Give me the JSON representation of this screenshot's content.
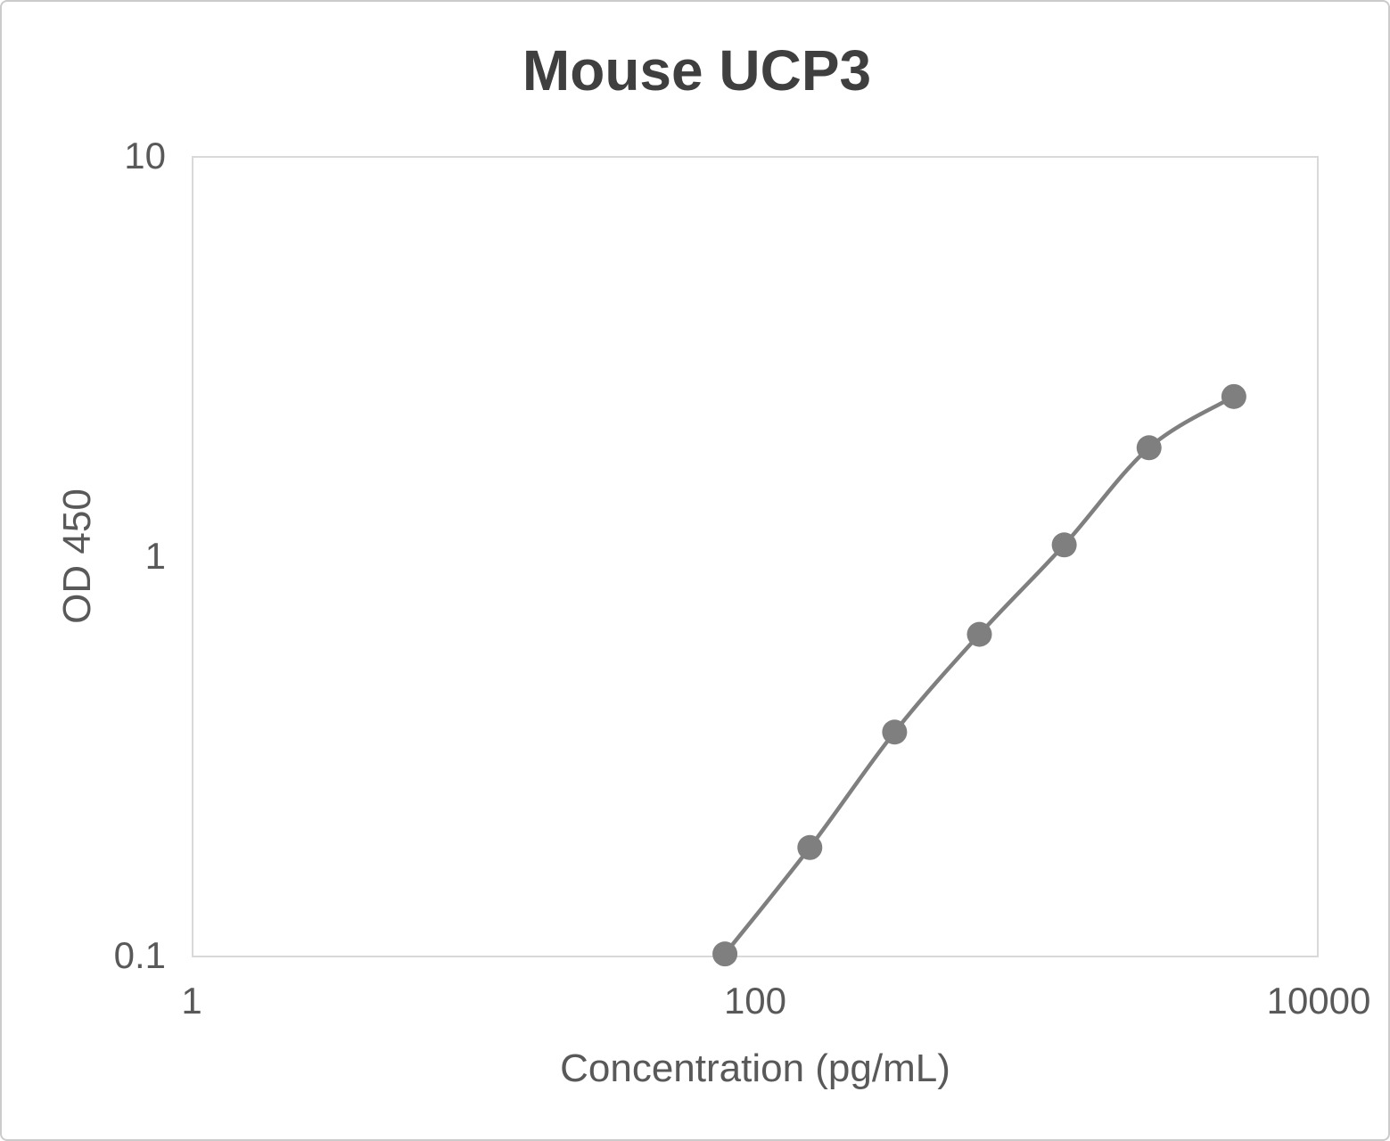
{
  "chart_data": {
    "type": "line",
    "title": "Mouse UCP3",
    "xlabel": "Concentration (pg/mL)",
    "ylabel": "OD 450",
    "x_scale": "log",
    "y_scale": "log",
    "xlim": [
      1,
      10000
    ],
    "ylim": [
      0.1,
      10
    ],
    "grid": false,
    "legend_position": "none",
    "x_ticks": [
      {
        "value": 1,
        "label": "1"
      },
      {
        "value": 100,
        "label": "100"
      },
      {
        "value": 10000,
        "label": "10000"
      }
    ],
    "y_ticks": [
      {
        "value": 0.1,
        "label": "0.1"
      },
      {
        "value": 1,
        "label": "1"
      },
      {
        "value": 10,
        "label": "10"
      }
    ],
    "series": [
      {
        "color": "#7f7f7f",
        "marker": "circle",
        "marker_radius": 14,
        "line_width": 4.5,
        "smooth": true,
        "points": [
          {
            "x": 78.1,
            "y": 0.102
          },
          {
            "x": 156.3,
            "y": 0.188
          },
          {
            "x": 312.5,
            "y": 0.365
          },
          {
            "x": 625,
            "y": 0.64
          },
          {
            "x": 1250,
            "y": 1.07
          },
          {
            "x": 2500,
            "y": 1.87
          },
          {
            "x": 5000,
            "y": 2.51
          }
        ]
      }
    ],
    "colors": {
      "title_text": "#3f3f3f",
      "axis_text": "#595959",
      "plot_border": "#d9d9d9",
      "series_gray": "#7f7f7f"
    }
  }
}
